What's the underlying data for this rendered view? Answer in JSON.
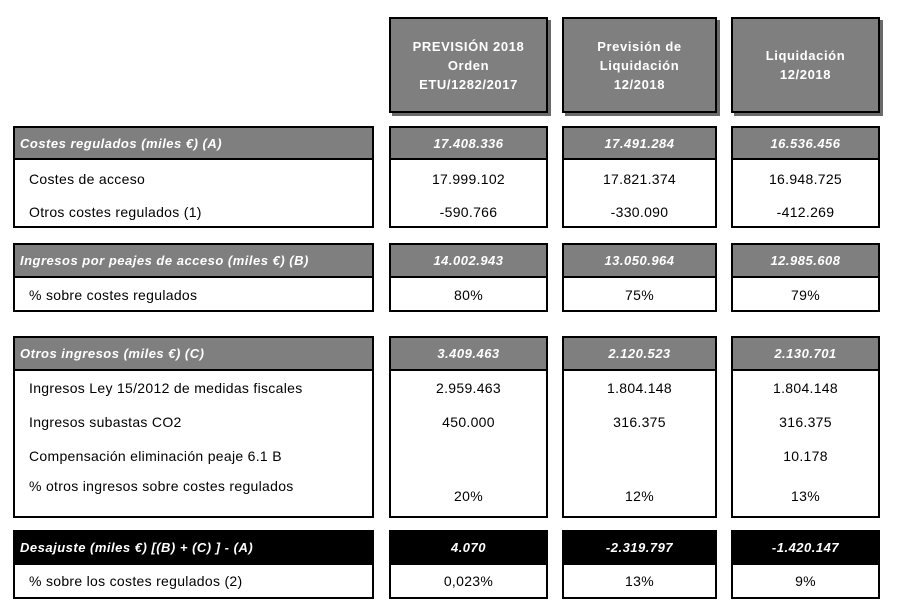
{
  "columns": [
    {
      "lines": [
        "PREVISIÓN 2018",
        "Orden",
        "ETU/1282/2017"
      ]
    },
    {
      "lines": [
        "Previsión de",
        "Liquidación",
        "12/2018"
      ]
    },
    {
      "lines": [
        "Liquidación",
        "12/2018"
      ]
    }
  ],
  "sections": [
    {
      "title": "Costes regulados (miles €) (A)",
      "values": [
        "17.408.336",
        "17.491.284",
        "16.536.456"
      ],
      "rows": [
        {
          "label": "Costes de acceso",
          "values": [
            "17.999.102",
            "17.821.374",
            "16.948.725"
          ]
        },
        {
          "label": "Otros costes regulados (1)",
          "values": [
            "-590.766",
            "-330.090",
            "-412.269"
          ]
        }
      ]
    },
    {
      "title": "Ingresos por peajes de acceso (miles €) (B)",
      "values": [
        "14.002.943",
        "13.050.964",
        "12.985.608"
      ],
      "rows": [
        {
          "label": "% sobre costes regulados",
          "values": [
            "80%",
            "75%",
            "79%"
          ]
        }
      ]
    },
    {
      "title": "Otros ingresos (miles €) (C)",
      "values": [
        "3.409.463",
        "2.120.523",
        "2.130.701"
      ],
      "rows": [
        {
          "label": "Ingresos Ley 15/2012 de medidas fiscales",
          "values": [
            "2.959.463",
            "1.804.148",
            "1.804.148"
          ]
        },
        {
          "label": "Ingresos subastas CO2",
          "values": [
            "450.000",
            "316.375",
            "316.375"
          ]
        },
        {
          "label": "Compensación eliminación peaje 6.1 B",
          "values": [
            "",
            "",
            "10.178"
          ]
        },
        {
          "label": "% otros ingresos sobre costes regulados",
          "values": [
            "20%",
            "12%",
            "13%"
          ]
        }
      ]
    },
    {
      "title": "Desajuste (miles €) [(B) + (C) ] - (A)",
      "values": [
        "4.070",
        "-2.319.797",
        "-1.420.147"
      ],
      "rows": [
        {
          "label": "% sobre los costes regulados (2)",
          "values": [
            "0,023%",
            "13%",
            "9%"
          ]
        }
      ]
    }
  ]
}
